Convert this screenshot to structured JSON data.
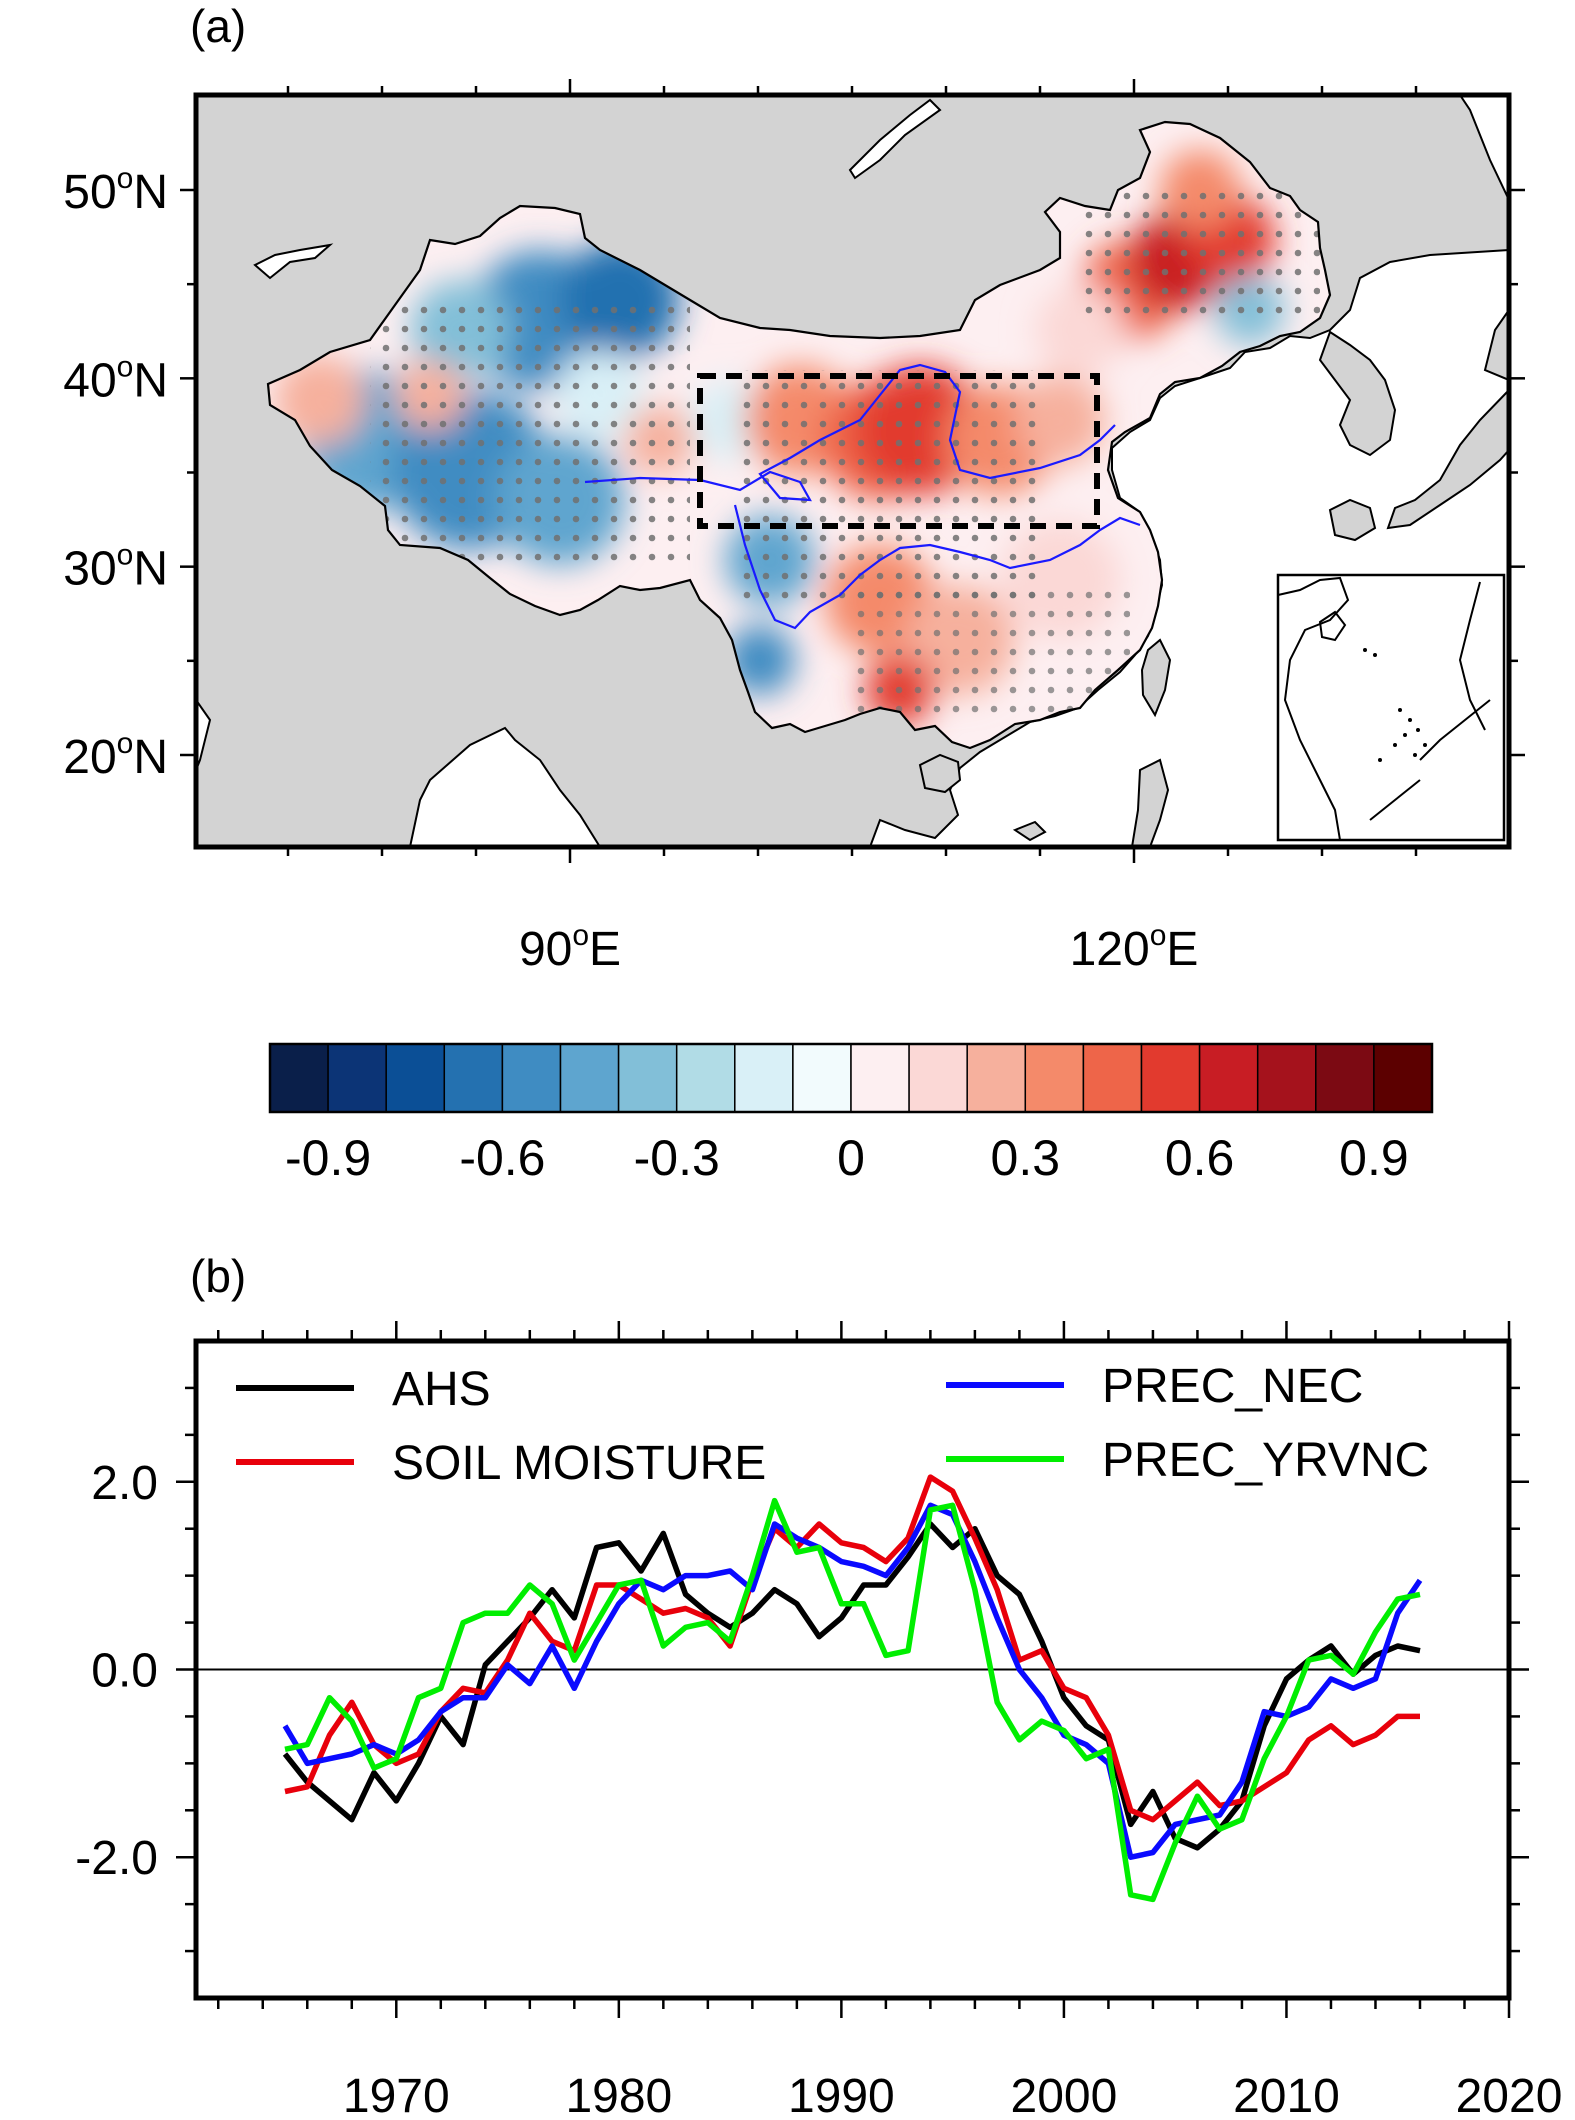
{
  "panel_a": {
    "label": "(a)",
    "lat_ticks": [
      {
        "deg": "50",
        "sup": "o",
        "hemi": "N"
      },
      {
        "deg": "40",
        "sup": "o",
        "hemi": "N"
      },
      {
        "deg": "30",
        "sup": "o",
        "hemi": "N"
      },
      {
        "deg": "20",
        "sup": "o",
        "hemi": "N"
      }
    ],
    "lon_ticks": [
      {
        "deg": "90",
        "sup": "o",
        "hemi": "E"
      },
      {
        "deg": "120",
        "sup": "o",
        "hemi": "E"
      }
    ],
    "colors": {
      "land": "#d3d3d3",
      "ocean": "#ffffff",
      "river": "#1a1aff",
      "stipple": "#707070"
    },
    "colorbar": {
      "colors": [
        "#0a1f4a",
        "#0c3476",
        "#0b4f96",
        "#2471b0",
        "#3f8cc2",
        "#5ea5cf",
        "#82bfd8",
        "#b1dce6",
        "#d9f0f7",
        "#f2fbfd",
        "#fdeff1",
        "#fbd8d6",
        "#f6b09d",
        "#f48a6a",
        "#ee6549",
        "#e23a2e",
        "#c81d24",
        "#a5121c",
        "#7c0a13",
        "#5c0000"
      ],
      "ticks": [
        "-0.9",
        "-0.6",
        "-0.3",
        "0",
        "0.3",
        "0.6",
        "0.9"
      ],
      "tick_values": [
        -0.9,
        -0.6,
        -0.3,
        0,
        0.3,
        0.6,
        0.9
      ]
    }
  },
  "panel_b": {
    "label": "(b)",
    "chart_data": {
      "type": "line",
      "title": "",
      "xlabel": "",
      "ylabel": "",
      "xlim": [
        1961,
        2020
      ],
      "ylim": [
        -3.5,
        3.5
      ],
      "xticks": [
        "1970",
        "1980",
        "1990",
        "2000",
        "2010",
        "2020"
      ],
      "xtick_values": [
        1970,
        1980,
        1990,
        2000,
        2010,
        2020
      ],
      "yticks": [
        "2.0",
        "0.0",
        "-2.0"
      ],
      "ytick_values": [
        2,
        0,
        -2
      ],
      "reference_line": 0,
      "x": [
        1965,
        1966,
        1967,
        1968,
        1969,
        1970,
        1971,
        1972,
        1973,
        1974,
        1975,
        1976,
        1977,
        1978,
        1979,
        1980,
        1981,
        1982,
        1983,
        1984,
        1985,
        1986,
        1987,
        1988,
        1989,
        1990,
        1991,
        1992,
        1993,
        1994,
        1995,
        1996,
        1997,
        1998,
        1999,
        2000,
        2001,
        2002,
        2003,
        2004,
        2005,
        2006,
        2007,
        2008,
        2009,
        2010,
        2011,
        2012,
        2013,
        2014,
        2015,
        2016
      ],
      "series": [
        {
          "name": "AHS",
          "color": "#000000",
          "values": [
            -0.9,
            -1.2,
            -1.4,
            -1.6,
            -1.1,
            -1.4,
            -1.0,
            -0.5,
            -0.8,
            0.05,
            0.3,
            0.55,
            0.85,
            0.55,
            1.3,
            1.35,
            1.05,
            1.45,
            0.8,
            0.6,
            0.45,
            0.6,
            0.85,
            0.7,
            0.35,
            0.55,
            0.9,
            0.9,
            1.2,
            1.55,
            1.3,
            1.5,
            1.0,
            0.8,
            0.3,
            -0.3,
            -0.6,
            -0.75,
            -1.65,
            -1.3,
            -1.8,
            -1.9,
            -1.7,
            -1.4,
            -0.6,
            -0.1,
            0.1,
            0.25,
            -0.05,
            0.15,
            0.25,
            0.2
          ]
        },
        {
          "name": "SOIL MOISTURE",
          "color": "#e8000b",
          "values": [
            -1.3,
            -1.25,
            -0.7,
            -0.35,
            -0.8,
            -1.0,
            -0.9,
            -0.45,
            -0.2,
            -0.25,
            0.1,
            0.6,
            0.3,
            0.2,
            0.9,
            0.9,
            0.75,
            0.6,
            0.65,
            0.55,
            0.25,
            0.95,
            1.5,
            1.3,
            1.55,
            1.35,
            1.3,
            1.15,
            1.4,
            2.05,
            1.9,
            1.4,
            0.85,
            0.1,
            0.2,
            -0.2,
            -0.3,
            -0.7,
            -1.5,
            -1.6,
            -1.4,
            -1.2,
            -1.45,
            -1.4,
            -1.25,
            -1.1,
            -0.75,
            -0.6,
            -0.8,
            -0.7,
            -0.5,
            -0.5
          ]
        },
        {
          "name": "PREC_NEC",
          "color": "#0a0aff",
          "values": [
            -0.6,
            -1.0,
            -0.95,
            -0.9,
            -0.8,
            -0.9,
            -0.75,
            -0.45,
            -0.3,
            -0.3,
            0.05,
            -0.15,
            0.25,
            -0.2,
            0.3,
            0.7,
            0.95,
            0.85,
            1.0,
            1.0,
            1.05,
            0.85,
            1.55,
            1.4,
            1.3,
            1.15,
            1.1,
            1.0,
            1.3,
            1.75,
            1.65,
            1.15,
            0.55,
            0.0,
            -0.3,
            -0.7,
            -0.8,
            -1.0,
            -2.0,
            -1.95,
            -1.65,
            -1.6,
            -1.55,
            -1.2,
            -0.45,
            -0.5,
            -0.4,
            -0.1,
            -0.2,
            -0.1,
            0.6,
            0.95
          ]
        },
        {
          "name": "PREC_YRVNC",
          "color": "#00ee00",
          "values": [
            -0.85,
            -0.8,
            -0.3,
            -0.55,
            -1.05,
            -0.95,
            -0.3,
            -0.2,
            0.5,
            0.6,
            0.6,
            0.9,
            0.7,
            0.1,
            0.5,
            0.9,
            0.95,
            0.25,
            0.45,
            0.5,
            0.3,
            1.0,
            1.8,
            1.25,
            1.3,
            0.7,
            0.7,
            0.15,
            0.2,
            1.7,
            1.75,
            0.85,
            -0.35,
            -0.75,
            -0.55,
            -0.65,
            -0.95,
            -0.85,
            -2.4,
            -2.45,
            -1.85,
            -1.35,
            -1.7,
            -1.6,
            -0.95,
            -0.5,
            0.1,
            0.15,
            -0.05,
            0.4,
            0.75,
            0.8
          ]
        }
      ]
    }
  }
}
